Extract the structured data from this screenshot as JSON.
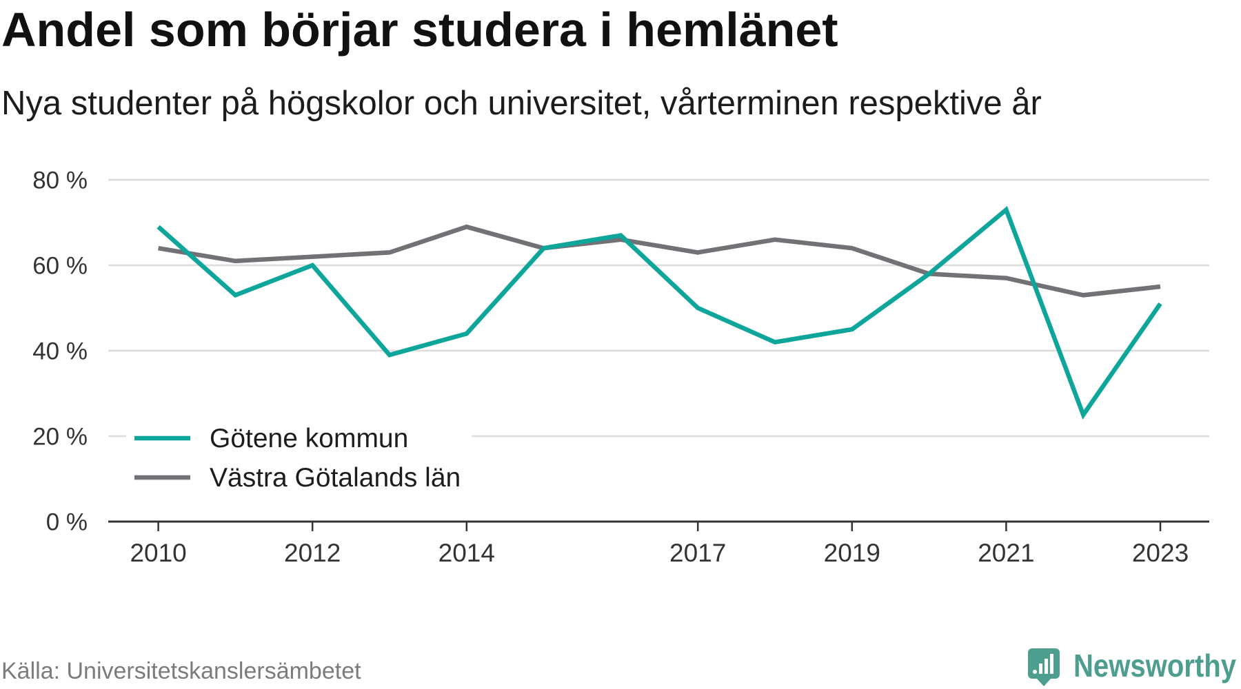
{
  "chart_data": {
    "type": "line",
    "title": "Andel som börjar studera i hemlänet",
    "subtitle": "Nya studenter på högskolor och universitet, vårterminen respektive år",
    "source": "Källa: Universitetskanslersämbetet",
    "x": [
      2010,
      2011,
      2012,
      2013,
      2014,
      2015,
      2016,
      2017,
      2018,
      2019,
      2020,
      2021,
      2022,
      2023
    ],
    "xticks": [
      "2010",
      "2012",
      "2014",
      "2017",
      "2019",
      "2021",
      "2023"
    ],
    "yticks": [
      "0 %",
      "20 %",
      "40 %",
      "60 %",
      "80 %"
    ],
    "ylim": [
      0,
      80
    ],
    "grid": true,
    "legend": "bottom-left",
    "series": [
      {
        "name": "Götene kommun",
        "color": "#0ea59b",
        "values": [
          69,
          53,
          60,
          39,
          44,
          64,
          67,
          50,
          42,
          45,
          58,
          73,
          25,
          51
        ]
      },
      {
        "name": "Västra Götalands län",
        "color": "#717176",
        "values": [
          64,
          61,
          62,
          63,
          69,
          64,
          66,
          63,
          66,
          64,
          58,
          57,
          53,
          55
        ]
      }
    ]
  },
  "logo": {
    "text": "Newsworthy",
    "color": "#4e9e8f",
    "icon": "newsworthy-logo-icon"
  }
}
